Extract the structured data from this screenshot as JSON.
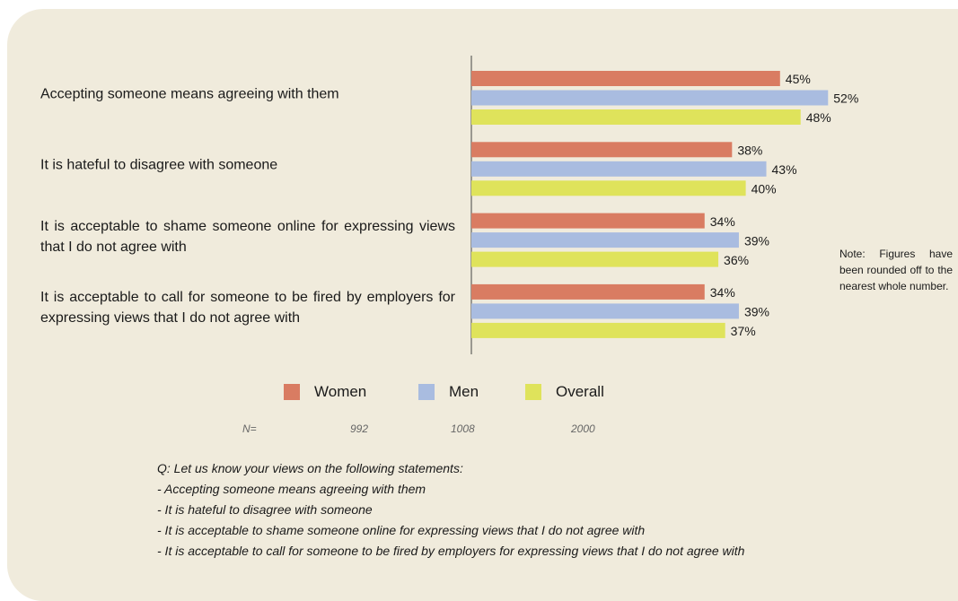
{
  "chart_data": {
    "type": "bar",
    "orientation": "horizontal",
    "categories": [
      "Accepting someone means agreeing with them",
      "It is hateful to disagree with someone",
      "It is acceptable to shame someone online for expressing views that I do not agree with",
      "It is acceptable to call for someone to be fired by employers for expressing views that I do not agree with"
    ],
    "series": [
      {
        "name": "Women",
        "color": "#d97c62",
        "values": [
          45,
          38,
          34,
          34
        ],
        "value_labels": [
          "45%",
          "38%",
          "34%",
          "34%"
        ]
      },
      {
        "name": "Men",
        "color": "#a9bce0",
        "values": [
          52,
          43,
          39,
          39
        ],
        "value_labels": [
          "52%",
          "43%",
          "39%",
          "39%"
        ]
      },
      {
        "name": "Overall",
        "color": "#dfe35b",
        "values": [
          48,
          40,
          36,
          37
        ],
        "value_labels": [
          "48%",
          "40%",
          "36%",
          "37%"
        ]
      }
    ],
    "sample_sizes": {
      "label": "N=",
      "values": [
        992,
        1008,
        2000
      ]
    },
    "note": "Note: Figures have been rounded off to the nearest whole number.",
    "question": "Q: Let us know your views on the following statements:",
    "statements": [
      "- Accepting someone means agreeing with them",
      "- It is hateful to disagree with someone",
      "- It is acceptable to shame someone online for expressing views that I do not agree with",
      "- It is acceptable to call for someone to be fired by employers for expressing views that I do not agree with"
    ]
  }
}
